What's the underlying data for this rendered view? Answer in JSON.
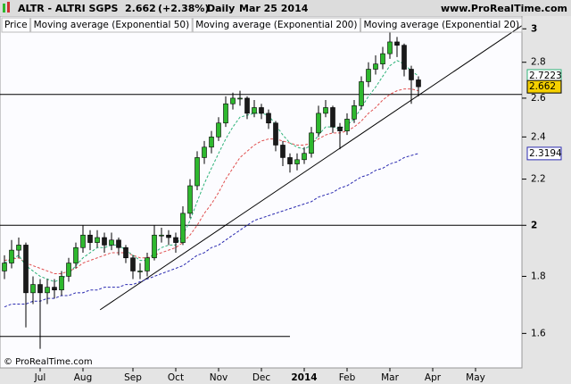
{
  "chart_data": {
    "type": "candlestick",
    "title": "ALTR - ALTRI SGPS",
    "change": "(+2.38%)",
    "interval": "Daily",
    "date": "Mar 25 2014",
    "site": "www.ProRealTime.com",
    "footer": "© ProRealTime.com",
    "price_label": "Price",
    "log_y": true,
    "ylim": [
      1.49,
      3.08
    ],
    "yticks": [
      1.6,
      1.8,
      2,
      2.2,
      2.4,
      2.6,
      2.8,
      3
    ],
    "up_color": "#2eb82e",
    "down_color": "#1a1a1a",
    "categories": [
      null,
      null,
      null,
      null,
      null,
      "Jul",
      null,
      null,
      null,
      null,
      null,
      "Aug",
      null,
      null,
      null,
      null,
      null,
      null,
      "Sep",
      null,
      null,
      null,
      null,
      null,
      "Oct",
      null,
      null,
      null,
      null,
      null,
      "Nov",
      null,
      null,
      null,
      null,
      null,
      "Dec",
      null,
      null,
      null,
      null,
      null,
      "2014",
      null,
      null,
      null,
      null,
      null,
      "Feb",
      null,
      null,
      null,
      null,
      null,
      "Mar",
      null,
      null,
      null,
      null,
      null,
      "Apr",
      null,
      null,
      null,
      null,
      null,
      "May"
    ],
    "ohlc": {
      "open": [
        1.82,
        1.85,
        1.9,
        1.92,
        1.74,
        1.77,
        1.74,
        1.76,
        1.75,
        1.8,
        1.85,
        1.91,
        1.96,
        1.93,
        1.95,
        1.92,
        1.94,
        1.91,
        1.87,
        1.82,
        1.82,
        1.87,
        1.96,
        1.96,
        1.95,
        1.93,
        2.05,
        2.17,
        2.3,
        2.35,
        2.4,
        2.47,
        2.57,
        2.6,
        2.6,
        2.52,
        2.55,
        2.52,
        2.47,
        2.36,
        2.3,
        2.27,
        2.29,
        2.32,
        2.42,
        2.52,
        2.55,
        2.45,
        2.43,
        2.49,
        2.56,
        2.69,
        2.76,
        2.79,
        2.85,
        2.92,
        2.9,
        2.76,
        2.7,
        null,
        null,
        null,
        null,
        null,
        null,
        null,
        null
      ],
      "high": [
        1.88,
        1.94,
        1.95,
        1.93,
        1.8,
        1.79,
        1.79,
        1.79,
        1.82,
        1.87,
        1.93,
        2.0,
        1.98,
        1.98,
        1.97,
        1.97,
        1.95,
        1.92,
        1.88,
        1.85,
        1.89,
        2.0,
        1.99,
        1.98,
        1.97,
        2.08,
        2.2,
        2.33,
        2.38,
        2.43,
        2.5,
        2.61,
        2.63,
        2.64,
        2.61,
        2.59,
        2.57,
        2.54,
        2.48,
        2.38,
        2.32,
        2.32,
        2.35,
        2.45,
        2.56,
        2.59,
        2.56,
        2.47,
        2.52,
        2.59,
        2.72,
        2.8,
        2.84,
        2.89,
        2.98,
        2.95,
        2.91,
        2.78,
        2.72,
        null,
        null,
        null,
        null,
        null,
        null,
        null,
        null
      ],
      "low": [
        1.79,
        1.83,
        1.87,
        1.62,
        1.7,
        1.55,
        1.7,
        1.72,
        1.73,
        1.78,
        1.83,
        1.89,
        1.9,
        1.91,
        1.89,
        1.9,
        1.88,
        1.85,
        1.79,
        1.79,
        1.8,
        1.86,
        1.93,
        1.92,
        1.89,
        1.92,
        2.03,
        2.15,
        2.27,
        2.32,
        2.38,
        2.45,
        2.54,
        2.56,
        2.49,
        2.5,
        2.49,
        2.44,
        2.33,
        2.26,
        2.23,
        2.24,
        2.27,
        2.3,
        2.4,
        2.5,
        2.42,
        2.34,
        2.41,
        2.47,
        2.54,
        2.66,
        2.73,
        2.76,
        2.82,
        2.83,
        2.72,
        2.57,
        2.61,
        null,
        null,
        null,
        null,
        null,
        null,
        null,
        null
      ],
      "close": [
        1.85,
        1.9,
        1.92,
        1.74,
        1.77,
        1.74,
        1.76,
        1.75,
        1.8,
        1.85,
        1.91,
        1.96,
        1.93,
        1.95,
        1.92,
        1.94,
        1.91,
        1.87,
        1.82,
        1.82,
        1.87,
        1.96,
        1.96,
        1.95,
        1.93,
        2.05,
        2.17,
        2.3,
        2.35,
        2.4,
        2.47,
        2.57,
        2.6,
        2.6,
        2.52,
        2.55,
        2.52,
        2.47,
        2.36,
        2.3,
        2.27,
        2.29,
        2.32,
        2.42,
        2.52,
        2.55,
        2.45,
        2.43,
        2.49,
        2.56,
        2.69,
        2.76,
        2.79,
        2.85,
        2.92,
        2.9,
        2.76,
        2.7,
        2.662,
        null,
        null,
        null,
        null,
        null,
        null,
        null,
        null
      ]
    },
    "price_label_color": "#f5d000",
    "series": [
      {
        "name": "Moving average (Exponential 50)",
        "color": "#e05050",
        "values": [
          1.86,
          1.865,
          1.87,
          1.85,
          1.84,
          1.83,
          1.82,
          1.81,
          1.81,
          1.82,
          1.83,
          1.85,
          1.86,
          1.87,
          1.88,
          1.89,
          1.89,
          1.89,
          1.88,
          1.87,
          1.87,
          1.88,
          1.89,
          1.9,
          1.91,
          1.93,
          1.96,
          2.0,
          2.05,
          2.09,
          2.14,
          2.2,
          2.25,
          2.3,
          2.33,
          2.36,
          2.38,
          2.39,
          2.39,
          2.38,
          2.37,
          2.36,
          2.36,
          2.37,
          2.39,
          2.41,
          2.42,
          2.42,
          2.43,
          2.45,
          2.48,
          2.52,
          2.55,
          2.59,
          2.62,
          2.64,
          2.65,
          2.65,
          2.64,
          null,
          null,
          null,
          null,
          null,
          null,
          null,
          null
        ]
      },
      {
        "name": "Moving average (Exponential 200)",
        "color": "#2a2ab0",
        "label_box": true,
        "values": [
          1.69,
          1.7,
          1.7,
          1.7,
          1.71,
          1.71,
          1.72,
          1.72,
          1.73,
          1.73,
          1.74,
          1.74,
          1.75,
          1.75,
          1.76,
          1.76,
          1.76,
          1.77,
          1.77,
          1.78,
          1.79,
          1.8,
          1.81,
          1.82,
          1.83,
          1.84,
          1.86,
          1.88,
          1.89,
          1.91,
          1.92,
          1.94,
          1.96,
          1.98,
          2.0,
          2.02,
          2.03,
          2.04,
          2.05,
          2.06,
          2.07,
          2.08,
          2.09,
          2.1,
          2.12,
          2.13,
          2.14,
          2.16,
          2.17,
          2.19,
          2.21,
          2.22,
          2.24,
          2.25,
          2.27,
          2.28,
          2.3,
          2.31,
          2.3194,
          null,
          null,
          null,
          null,
          null,
          null,
          null,
          null
        ]
      },
      {
        "name": "Moving average (Exponential 20)",
        "color": "#2fb37a",
        "label_box": true,
        "values": [
          1.85,
          1.865,
          1.88,
          1.84,
          1.82,
          1.8,
          1.79,
          1.78,
          1.79,
          1.81,
          1.84,
          1.87,
          1.89,
          1.91,
          1.91,
          1.92,
          1.92,
          1.9,
          1.88,
          1.86,
          1.86,
          1.89,
          1.91,
          1.92,
          1.92,
          1.96,
          2.02,
          2.1,
          2.18,
          2.25,
          2.32,
          2.39,
          2.45,
          2.5,
          2.51,
          2.52,
          2.52,
          2.51,
          2.46,
          2.41,
          2.37,
          2.35,
          2.34,
          2.36,
          2.41,
          2.45,
          2.45,
          2.44,
          2.46,
          2.49,
          2.55,
          2.61,
          2.66,
          2.72,
          2.78,
          2.81,
          2.79,
          2.75,
          2.7223,
          null,
          null,
          null,
          null,
          null,
          null,
          null,
          null
        ]
      }
    ],
    "hlines": [
      {
        "value": 2.62
      },
      {
        "value": 2.0
      },
      {
        "value": 1.59,
        "to_index": 40
      }
    ],
    "trendline": {
      "from": [
        13.4,
        1.68
      ],
      "to": [
        72.5,
        3.02
      ]
    }
  }
}
